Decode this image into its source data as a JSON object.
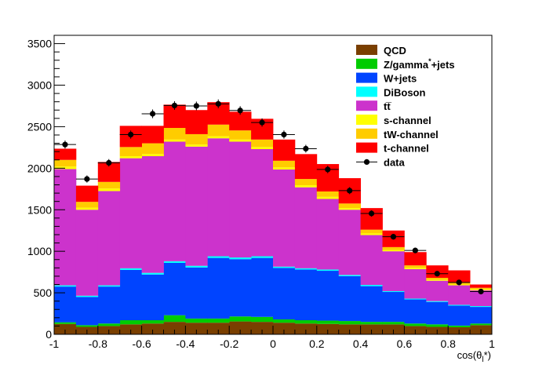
{
  "chart_data": {
    "type": "bar",
    "stacked": true,
    "xlabel": "cos(θ",
    "xlabel_sub": "l",
    "xlabel_tail": "*)",
    "xlim": [
      -1,
      1
    ],
    "ylim": [
      0,
      3600
    ],
    "x_ticks": [
      -1,
      -0.8,
      -0.6,
      -0.4,
      -0.2,
      0,
      0.2,
      0.4,
      0.6,
      0.8,
      1
    ],
    "y_ticks": [
      0,
      500,
      1000,
      1500,
      2000,
      2500,
      3000,
      3500
    ],
    "x_tick_labels": [
      "-1",
      "-0.8",
      "-0.6",
      "-0.4",
      "-0.2",
      "0",
      "0.2",
      "0.4",
      "0.6",
      "0.8",
      "1"
    ],
    "y_tick_labels": [
      "0",
      "500",
      "1000",
      "1500",
      "2000",
      "2500",
      "3000",
      "3500"
    ],
    "legend_position": "top-right",
    "grid": false,
    "bin_edges": [
      -1,
      -0.9,
      -0.8,
      -0.7,
      -0.6,
      -0.5,
      -0.4,
      -0.3,
      -0.2,
      -0.1,
      0,
      0.1,
      0.2,
      0.3,
      0.4,
      0.5,
      0.6,
      0.7,
      0.8,
      0.9,
      1
    ],
    "series": [
      {
        "name": "QCD",
        "color": "#7a3f00",
        "values": [
          125,
          90,
          100,
          120,
          130,
          150,
          140,
          140,
          155,
          150,
          140,
          130,
          125,
          120,
          120,
          120,
          100,
          90,
          85,
          110
        ]
      },
      {
        "name": "Z/gamma*+jets",
        "color": "#00cc00",
        "values": [
          20,
          20,
          30,
          50,
          40,
          80,
          50,
          50,
          60,
          60,
          40,
          40,
          40,
          40,
          30,
          30,
          30,
          30,
          20,
          20
        ]
      },
      {
        "name": "W+jets",
        "color": "#0044ff",
        "values": [
          430,
          340,
          445,
          605,
          550,
          630,
          615,
          730,
          690,
          710,
          620,
          610,
          600,
          540,
          430,
          360,
          290,
          270,
          240,
          200
        ]
      },
      {
        "name": "DiBoson",
        "color": "#00ffff",
        "values": [
          15,
          15,
          15,
          20,
          20,
          20,
          20,
          20,
          20,
          20,
          15,
          15,
          15,
          15,
          15,
          10,
          10,
          10,
          10,
          10
        ]
      },
      {
        "name": "tt̅",
        "color": "#cc33cc",
        "values": [
          1400,
          1035,
          1135,
          1325,
          1405,
          1440,
          1435,
          1420,
          1395,
          1290,
          1170,
          975,
          850,
          785,
          600,
          480,
          355,
          245,
          235,
          190
        ]
      },
      {
        "name": "s-channel",
        "color": "#ffff00",
        "values": [
          30,
          25,
          30,
          25,
          25,
          25,
          25,
          25,
          25,
          25,
          25,
          25,
          25,
          20,
          20,
          15,
          15,
          10,
          10,
          10
        ]
      },
      {
        "name": "tW-channel",
        "color": "#ffcc00",
        "values": [
          80,
          70,
          80,
          110,
          130,
          140,
          125,
          140,
          110,
          90,
          80,
          75,
          65,
          55,
          45,
          35,
          30,
          25,
          20,
          20
        ]
      },
      {
        "name": "t-channel",
        "color": "#ff0000",
        "values": [
          135,
          195,
          240,
          255,
          210,
          280,
          290,
          270,
          225,
          250,
          255,
          300,
          330,
          305,
          260,
          200,
          160,
          150,
          150,
          40
        ]
      }
    ],
    "data_points": {
      "name": "data",
      "x": [
        -0.95,
        -0.85,
        -0.75,
        -0.65,
        -0.55,
        -0.45,
        -0.35,
        -0.25,
        -0.15,
        -0.05,
        0.05,
        0.15,
        0.25,
        0.35,
        0.45,
        0.55,
        0.65,
        0.75,
        0.85,
        0.95
      ],
      "y": [
        2285,
        1870,
        2065,
        2405,
        2655,
        2755,
        2750,
        2775,
        2695,
        2550,
        2405,
        2235,
        1985,
        1730,
        1455,
        1175,
        1010,
        730,
        625,
        515
      ],
      "yerr": [
        48,
        43,
        45,
        49,
        52,
        52,
        52,
        53,
        52,
        50,
        49,
        47,
        45,
        42,
        38,
        34,
        32,
        27,
        25,
        23
      ]
    },
    "legend": [
      {
        "label": "QCD",
        "color": "#7a3f00",
        "style": "box"
      },
      {
        "label": "Z/gamma",
        "sup": "*",
        "tail": "+jets",
        "color": "#00cc00",
        "style": "box"
      },
      {
        "label": "W+jets",
        "color": "#0044ff",
        "style": "box"
      },
      {
        "label": "DiBoson",
        "color": "#00ffff",
        "style": "box"
      },
      {
        "label": "tt̅",
        "color": "#cc33cc",
        "style": "box"
      },
      {
        "label": "s-channel",
        "color": "#ffff00",
        "style": "box"
      },
      {
        "label": "tW-channel",
        "color": "#ffcc00",
        "style": "box"
      },
      {
        "label": "t-channel",
        "color": "#ff0000",
        "style": "box"
      },
      {
        "label": "data",
        "color": "#000000",
        "style": "marker"
      }
    ]
  }
}
